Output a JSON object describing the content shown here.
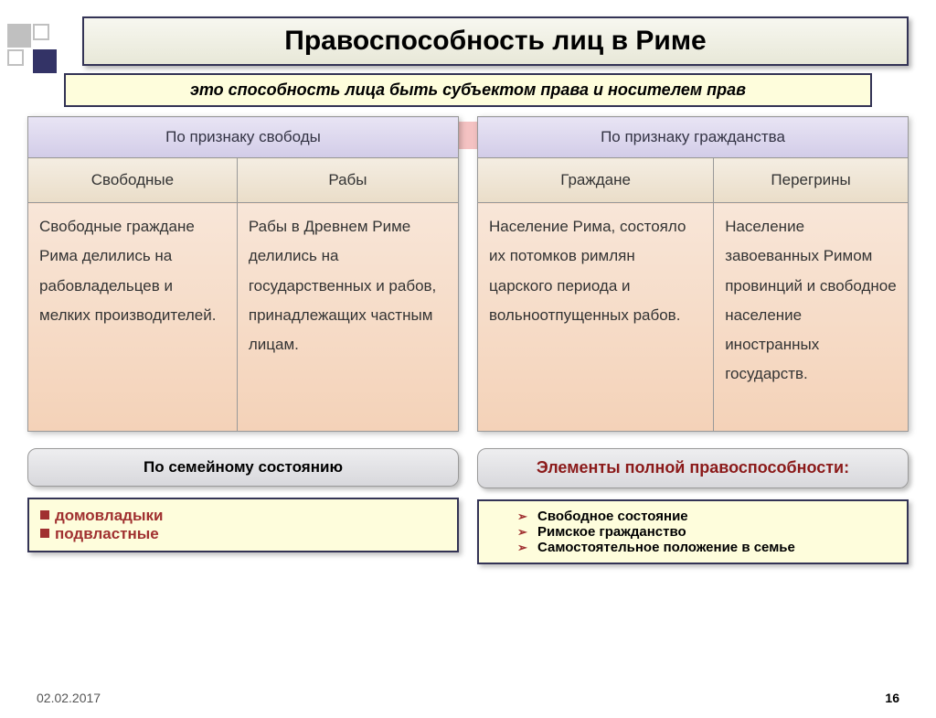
{
  "title": "Правоспособность лиц в Риме",
  "subtitle": "это способность лица быть субъектом права и носителем прав",
  "table_left": {
    "header": "По признаку свободы",
    "cols": [
      "Свободные",
      "Рабы"
    ],
    "cells": [
      "Свободные граждане Рима делились на рабовладельцев и мелких производителей.",
      "Рабы в Древнем Риме делились на государственных и рабов, принадлежащих частным лицам."
    ]
  },
  "table_right": {
    "header": "По признаку гражданства",
    "cols": [
      "Граждане",
      "Перегрины"
    ],
    "cells": [
      "Население Рима, состояло их потомков римлян царского периода и вольноотпущенных рабов.",
      "Население завоеванных Римом провинций и свободное население иностранных государств."
    ]
  },
  "pill_left": "По семейному состоянию",
  "pill_right": "Элементы полной правоспособности:",
  "box_left_items": [
    "домовладыки",
    "подвластные"
  ],
  "box_right_items": [
    "Свободное состояние",
    "Римское гражданство",
    "Самостоятельное положение в семье"
  ],
  "footer_date": "02.02.2017",
  "footer_page": "16",
  "colors": {
    "title_border": "#333355",
    "title_bg": "#e8e8d8",
    "subtitle_bg": "#fefddc",
    "header1_bg": "#d2cce8",
    "header2_bg": "#eaddc8",
    "cell_bg": "#f4d2b8",
    "pill_bg": "#d8d8dc",
    "red_text": "#8b1a1a",
    "bullet": "#a03030"
  }
}
